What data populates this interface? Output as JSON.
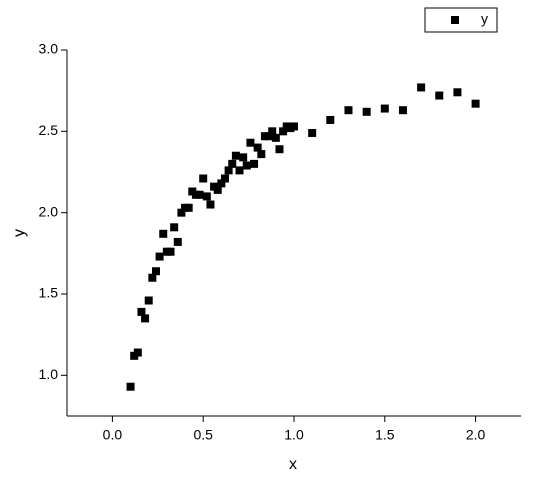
{
  "chart_data": {
    "type": "scatter",
    "x_label": "x",
    "y_label": "y",
    "xlim": [
      -0.25,
      2.25
    ],
    "ylim": [
      0.75,
      3.0
    ],
    "xticks": [
      {
        "value": 0,
        "label": "0.0"
      },
      {
        "value": 0.5,
        "label": "0.5"
      },
      {
        "value": 1,
        "label": "1.0"
      },
      {
        "value": 1.5,
        "label": "1.5"
      },
      {
        "value": 2,
        "label": "2.0"
      }
    ],
    "yticks": [
      {
        "value": 1,
        "label": "1.0"
      },
      {
        "value": 1.5,
        "label": "1.5"
      },
      {
        "value": 2,
        "label": "2.0"
      },
      {
        "value": 2.5,
        "label": "2.5"
      },
      {
        "value": 3,
        "label": "3.0"
      }
    ],
    "legend": "top-right",
    "series": [
      {
        "name": "y",
        "color": "#000000",
        "x": [
          0.1,
          0.12,
          0.14,
          0.16,
          0.18,
          0.2,
          0.22,
          0.24,
          0.26,
          0.28,
          0.3,
          0.32,
          0.34,
          0.36,
          0.38,
          0.4,
          0.42,
          0.44,
          0.46,
          0.48,
          0.5,
          0.52,
          0.54,
          0.56,
          0.58,
          0.6,
          0.62,
          0.64,
          0.66,
          0.68,
          0.7,
          0.72,
          0.74,
          0.76,
          0.78,
          0.8,
          0.82,
          0.84,
          0.86,
          0.88,
          0.9,
          0.92,
          0.94,
          0.96,
          0.98,
          1.0,
          1.1,
          1.2,
          1.3,
          1.4,
          1.5,
          1.6,
          1.7,
          1.8,
          1.9,
          2.0
        ],
        "values": [
          0.93,
          1.12,
          1.14,
          1.39,
          1.35,
          1.46,
          1.6,
          1.64,
          1.73,
          1.87,
          1.76,
          1.76,
          1.91,
          1.82,
          2.0,
          2.03,
          2.03,
          2.13,
          2.11,
          2.11,
          2.21,
          2.1,
          2.05,
          2.16,
          2.14,
          2.18,
          2.21,
          2.26,
          2.3,
          2.35,
          2.26,
          2.34,
          2.29,
          2.43,
          2.3,
          2.4,
          2.36,
          2.47,
          2.47,
          2.5,
          2.46,
          2.39,
          2.5,
          2.53,
          2.52,
          2.53,
          2.49,
          2.57,
          2.63,
          2.62,
          2.64,
          2.63,
          2.77,
          2.72,
          2.74,
          2.67
        ]
      }
    ]
  }
}
